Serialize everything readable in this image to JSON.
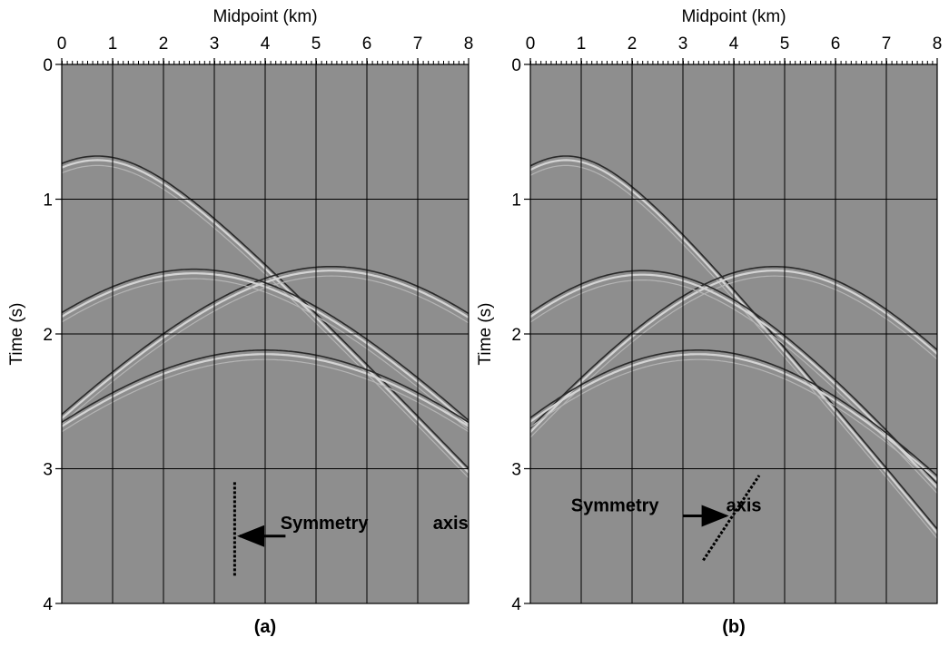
{
  "chart_data": [
    {
      "type": "seismic",
      "xlabel": "Midpoint (km)",
      "ylabel": "Time (s)",
      "xlim": [
        0,
        8
      ],
      "ylim": [
        0,
        4
      ],
      "xticks": [
        0,
        1,
        2,
        3,
        4,
        5,
        6,
        7,
        8
      ],
      "yticks": [
        0,
        1,
        2,
        3,
        4
      ],
      "grid": true,
      "caption": "(a)",
      "annotations": [
        "Symmetry",
        "axis"
      ]
    },
    {
      "type": "seismic",
      "xlabel": "Midpoint (km)",
      "ylabel": "Time (s)",
      "xlim": [
        0,
        8
      ],
      "ylim": [
        0,
        4
      ],
      "xticks": [
        0,
        1,
        2,
        3,
        4,
        5,
        6,
        7,
        8
      ],
      "yticks": [
        0,
        1,
        2,
        3,
        4
      ],
      "grid": true,
      "caption": "(b)",
      "annotations": [
        "Symmetry",
        "axis"
      ]
    }
  ]
}
